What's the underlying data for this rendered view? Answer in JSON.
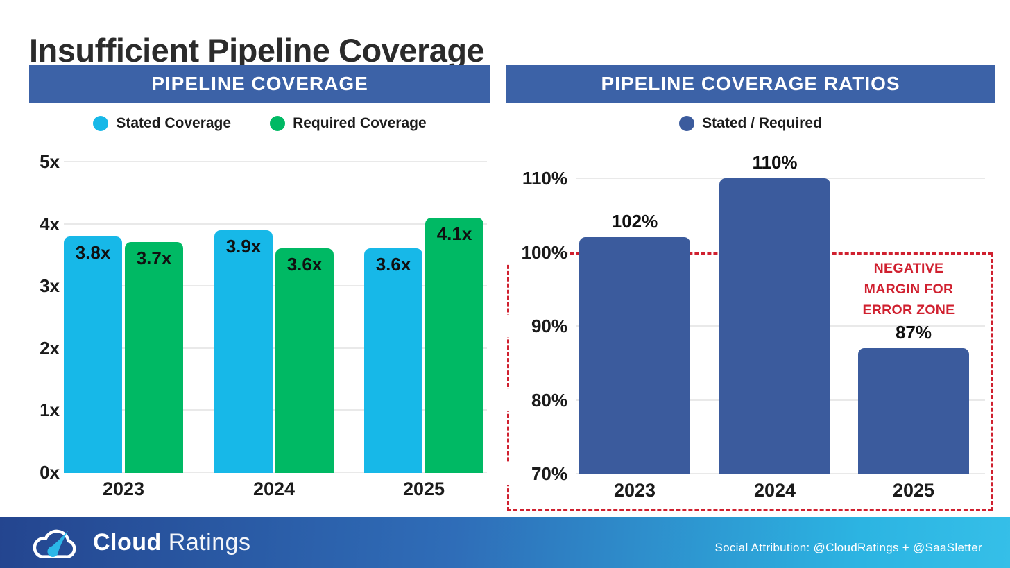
{
  "page": {
    "title": "Insufficient Pipeline Coverage"
  },
  "colors": {
    "header_band": "#3c62a7",
    "stated": "#17b8e8",
    "required": "#00b964",
    "ratio": "#3b5b9d",
    "alert": "#d0202f",
    "gridline": "#e9e9e9"
  },
  "chart_data": [
    {
      "type": "bar",
      "title": "PIPELINE COVERAGE",
      "categories": [
        "2023",
        "2024",
        "2025"
      ],
      "series": [
        {
          "name": "Stated Coverage",
          "color_key": "stated",
          "values": [
            3.8,
            3.9,
            3.6
          ]
        },
        {
          "name": "Required Coverage",
          "color_key": "required",
          "values": [
            3.7,
            3.6,
            4.1
          ]
        }
      ],
      "value_labels": [
        [
          "3.8x",
          "3.9x",
          "3.6x"
        ],
        [
          "3.7x",
          "3.6x",
          "4.1x"
        ]
      ],
      "value_suffix": "x",
      "ylim": [
        0,
        5
      ],
      "yticks": [
        {
          "value": 0,
          "label": "0x"
        },
        {
          "value": 1,
          "label": "1x"
        },
        {
          "value": 2,
          "label": "2x"
        },
        {
          "value": 3,
          "label": "3x"
        },
        {
          "value": 4,
          "label": "4x"
        },
        {
          "value": 5,
          "label": "5x"
        }
      ],
      "label_position": "inside-top",
      "legend_position": "top",
      "grid": true
    },
    {
      "type": "bar",
      "title": "PIPELINE COVERAGE RATIOS",
      "categories": [
        "2023",
        "2024",
        "2025"
      ],
      "series": [
        {
          "name": "Stated / Required",
          "color_key": "ratio",
          "values": [
            102,
            110,
            87
          ]
        }
      ],
      "value_labels": [
        [
          "102%",
          "110%",
          "87%"
        ]
      ],
      "value_suffix": "%",
      "ylim": [
        70,
        110
      ],
      "yticks": [
        {
          "value": 70,
          "label": "70%"
        },
        {
          "value": 80,
          "label": "80%"
        },
        {
          "value": 90,
          "label": "90%"
        },
        {
          "value": 100,
          "label": "100%"
        },
        {
          "value": 110,
          "label": "110%"
        }
      ],
      "label_position": "above",
      "legend_position": "top",
      "grid": true,
      "annotation": {
        "text": "NEGATIVE MARGIN FOR ERROR ZONE",
        "zone_top_value": 100
      }
    }
  ],
  "footer": {
    "logo_icon": "cloud-gauge-icon",
    "brand_bold": "Cloud",
    "brand_light": "Ratings",
    "attribution": "Social Attribution: @CloudRatings + @SaaSletter"
  }
}
